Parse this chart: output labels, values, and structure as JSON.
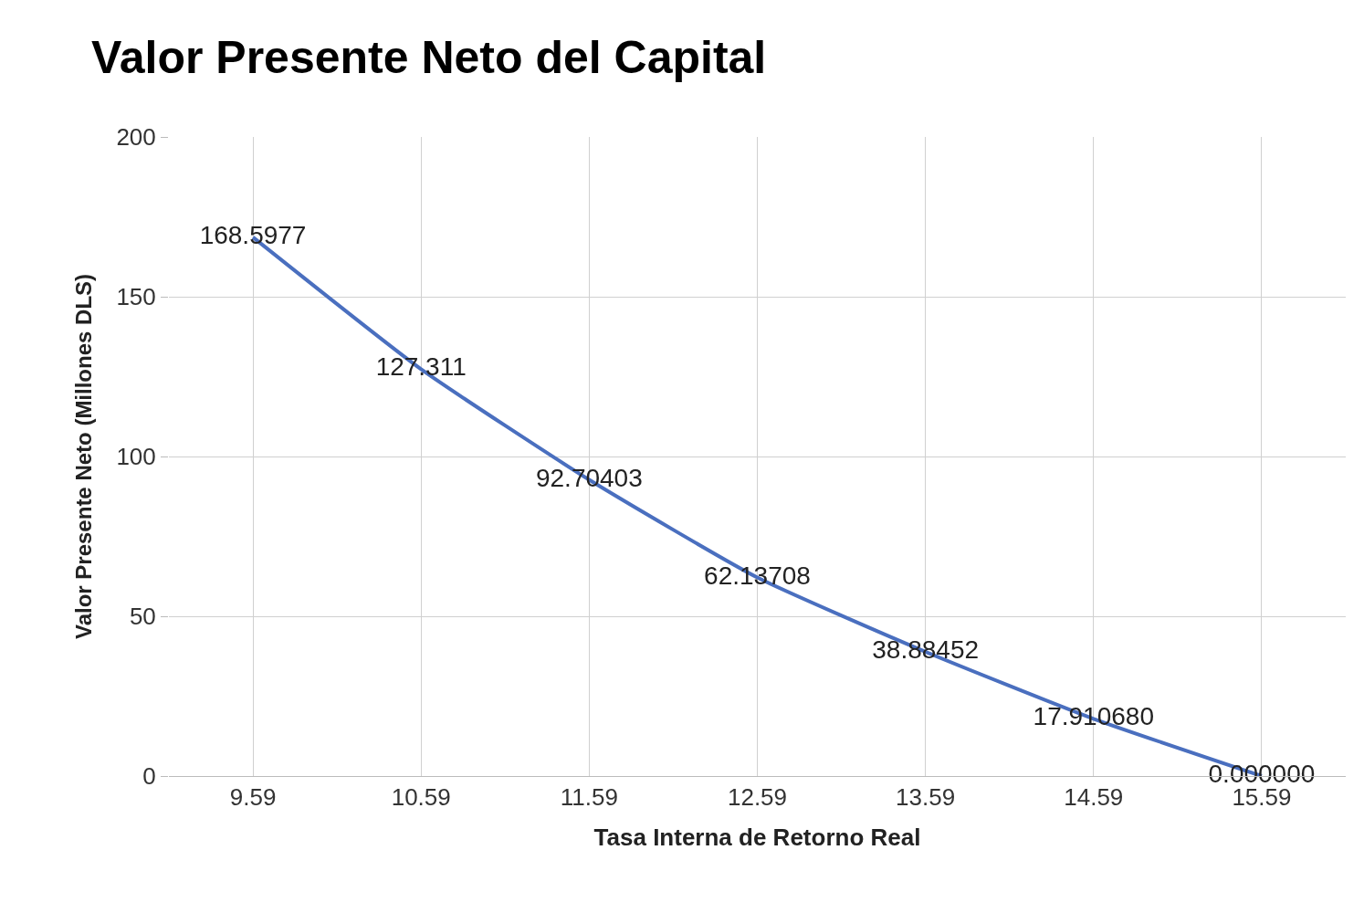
{
  "chart_data": {
    "type": "line",
    "title": "Valor Presente Neto del Capital",
    "xlabel": "Tasa Interna de Retorno Real",
    "ylabel": "Valor Presente Neto (Millones DLS)",
    "categories": [
      "9.59",
      "10.59",
      "11.59",
      "12.59",
      "13.59",
      "14.59",
      "15.59"
    ],
    "series": [
      {
        "color": "#4a6fbf",
        "values": [
          168.5977,
          127.311,
          92.70403,
          62.13708,
          38.88452,
          17.91068,
          0
        ],
        "value_labels": [
          "168.5977",
          "127.311",
          "92.70403",
          "62.13708",
          "38.88452",
          "17.910680",
          "0.000000"
        ]
      }
    ],
    "ylim": [
      0,
      200
    ],
    "yticks": [
      0,
      50,
      100,
      150,
      200
    ],
    "grid": true,
    "marker": "none",
    "line_style": "solid"
  }
}
